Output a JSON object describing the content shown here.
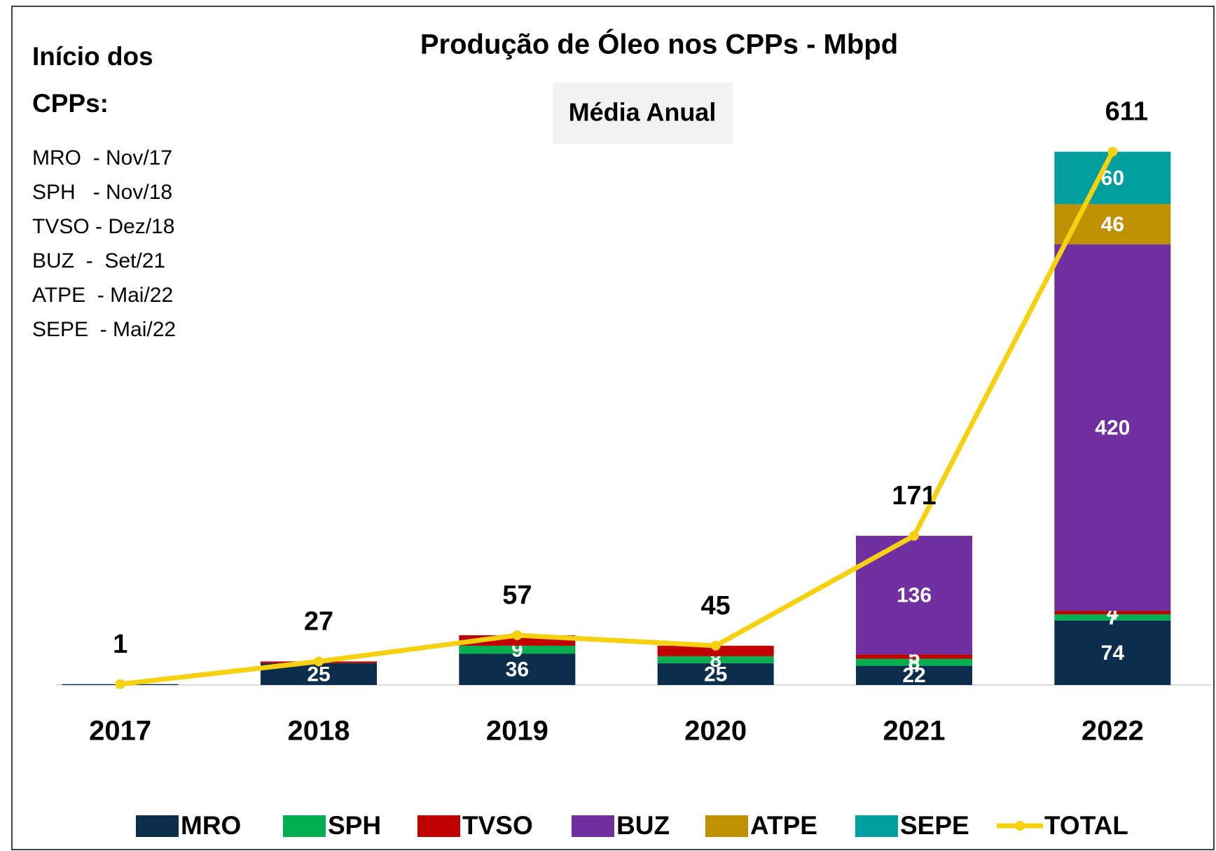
{
  "chart_data": {
    "type": "bar",
    "stacked": true,
    "title": "Produção  de Óleo nos CPPs - Mbpd",
    "subtitle": "Média Anual",
    "side_title": [
      "Início dos",
      "CPPs:"
    ],
    "side_notes": [
      "MRO  - Nov/17",
      "SPH   - Nov/18",
      "TVSO - Dez/18",
      "BUZ  -  Set/21",
      "ATPE  - Mai/22",
      "SEPE  - Mai/22"
    ],
    "categories": [
      "2017",
      "2018",
      "2019",
      "2020",
      "2021",
      "2022"
    ],
    "ylim": [
      0,
      650
    ],
    "legend": "bottom",
    "series": [
      {
        "name": "MRO",
        "color": "#0c2d4c",
        "values": [
          1,
          25,
          36,
          25,
          22,
          74
        ],
        "value_labels": [
          null,
          "25",
          "36",
          "25",
          "22",
          "74"
        ]
      },
      {
        "name": "SPH",
        "color": "#00b050",
        "values": [
          0,
          0,
          9,
          8,
          8,
          7
        ],
        "value_labels": [
          null,
          null,
          "9",
          "8",
          "8",
          "7"
        ]
      },
      {
        "name": "TVSO",
        "color": "#c00000",
        "values": [
          0,
          2,
          12,
          12,
          5,
          4
        ],
        "value_labels": [
          null,
          null,
          null,
          null,
          "5",
          "4"
        ]
      },
      {
        "name": "BUZ",
        "color": "#7030a0",
        "values": [
          0,
          0,
          0,
          0,
          136,
          420
        ],
        "value_labels": [
          null,
          null,
          null,
          null,
          "136",
          "420"
        ]
      },
      {
        "name": "ATPE",
        "color": "#bf9000",
        "values": [
          0,
          0,
          0,
          0,
          0,
          46
        ],
        "value_labels": [
          null,
          null,
          null,
          null,
          null,
          "46"
        ]
      },
      {
        "name": "SEPE",
        "color": "#009e9e",
        "values": [
          0,
          0,
          0,
          0,
          0,
          60
        ],
        "value_labels": [
          null,
          null,
          null,
          null,
          null,
          "60"
        ]
      },
      {
        "name": "TOTAL",
        "type": "line",
        "color": "#f5d10f",
        "values": [
          1,
          27,
          57,
          45,
          171,
          611
        ]
      }
    ]
  }
}
